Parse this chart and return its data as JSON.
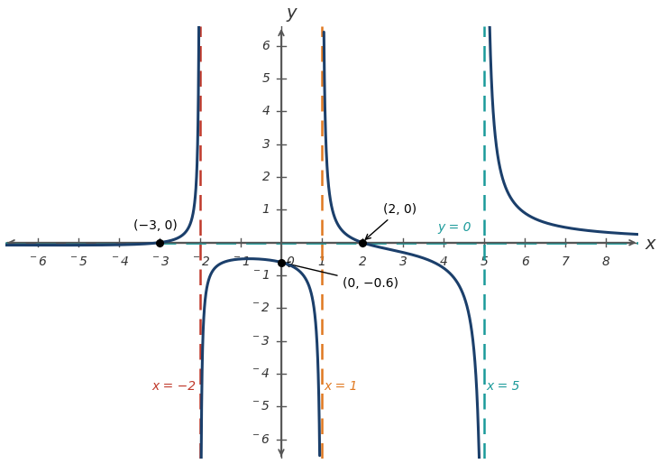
{
  "xlabel": "x",
  "ylabel": "y",
  "xlim": [
    -6.8,
    8.8
  ],
  "ylim": [
    -6.6,
    6.6
  ],
  "xticks": [
    -6,
    -5,
    -4,
    -3,
    -2,
    -1,
    1,
    2,
    3,
    4,
    5,
    6,
    7,
    8
  ],
  "yticks": [
    -6,
    -5,
    -4,
    -3,
    -2,
    -1,
    1,
    2,
    3,
    4,
    5,
    6
  ],
  "curve_color": "#1b3f6b",
  "asym_neg2_color": "#c0392b",
  "asym_x1_color": "#e07820",
  "asym_x5_color": "#1a9a9a",
  "asym_y0_color": "#1a9a9a",
  "axis_color": "#555555",
  "tick_label_color": "#333333",
  "label_neg3_0": "(−3, 0)",
  "label_2_0": "(2, 0)",
  "label_0_neg06": "(0, −0.6)",
  "label_y0": "y = 0",
  "label_xneg2": "x = −2",
  "label_x1": "x = 1",
  "label_x5": "x = 5",
  "background_color": "#ffffff"
}
